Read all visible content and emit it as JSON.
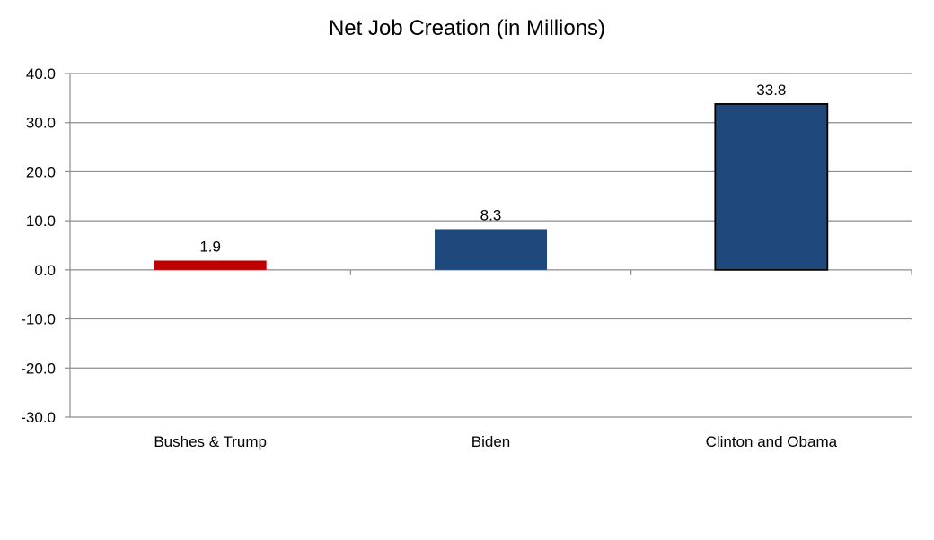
{
  "chart_data": {
    "type": "bar",
    "title": "Net Job Creation (in Millions)",
    "xlabel": "",
    "ylabel": "",
    "categories": [
      "Bushes & Trump",
      "Biden",
      "Clinton and Obama"
    ],
    "values": [
      1.9,
      8.3,
      33.8
    ],
    "data_labels": [
      "1.9",
      "8.3",
      "33.8"
    ],
    "bar_colors": [
      "#C00000",
      "#1F497D",
      "#1F497D"
    ],
    "ylim": [
      -30,
      40
    ],
    "yticks": [
      40,
      30,
      20,
      10,
      0,
      -10,
      -20,
      -30
    ],
    "ytick_labels": [
      "40.0",
      "30.0",
      "20.0",
      "10.0",
      "0.0",
      "-10.0",
      "-20.0",
      "-30.0"
    ],
    "grid": true,
    "legend": "none"
  }
}
